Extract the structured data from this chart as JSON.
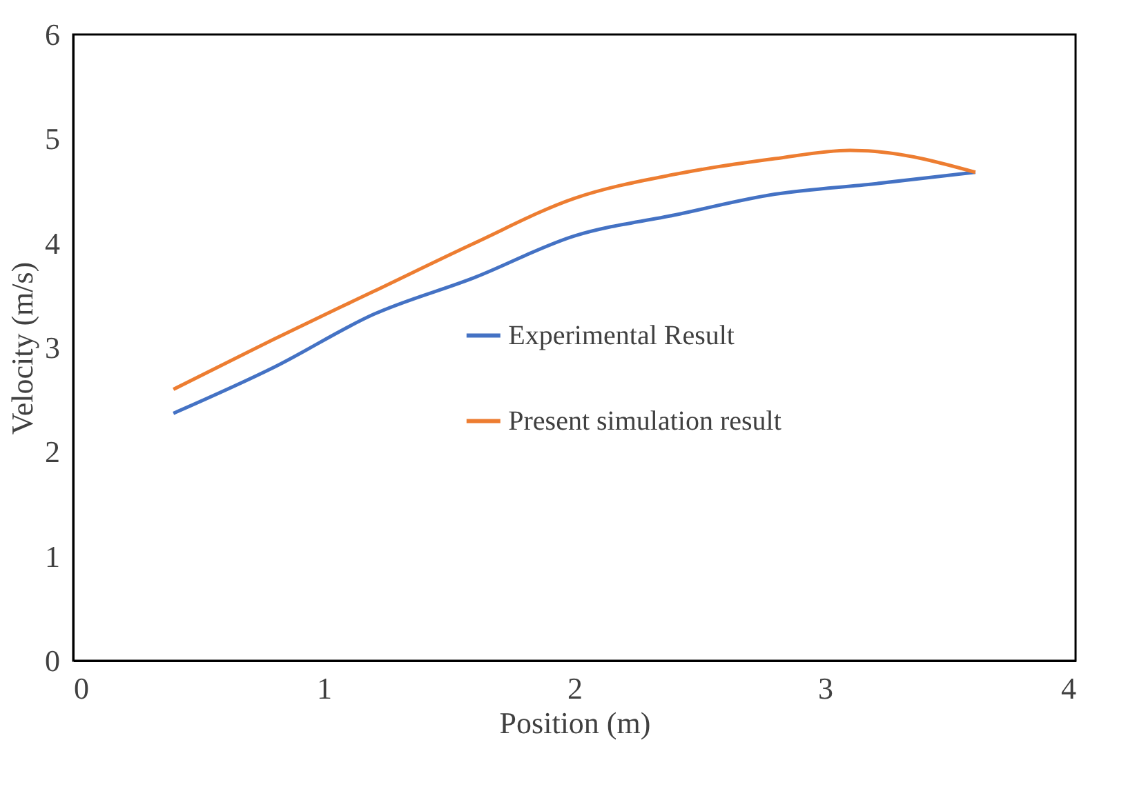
{
  "chart_data": {
    "type": "line",
    "xlabel": "Position (m)",
    "ylabel": "Velocity (m/s)",
    "xlim": [
      0,
      4
    ],
    "xticks": [
      0,
      1,
      2,
      3,
      4
    ],
    "ylim": [
      0,
      6
    ],
    "yticks": [
      0,
      1,
      2,
      3,
      4,
      5,
      6
    ],
    "grid": false,
    "legend": "right",
    "marker": "none",
    "line_style": "solid",
    "series": [
      {
        "name": "Experimental Result",
        "color": "#4472c4",
        "x": [
          0.4,
          0.8,
          1.2,
          1.6,
          2.0,
          2.4,
          2.8,
          3.2,
          3.6
        ],
        "values": [
          2.37,
          2.81,
          3.32,
          3.67,
          4.07,
          4.27,
          4.47,
          4.57,
          4.68
        ]
      },
      {
        "name": "Present simulation result",
        "color": "#ed7d31",
        "x": [
          0.4,
          0.8,
          1.2,
          1.6,
          2.0,
          2.4,
          2.8,
          3.1,
          3.2,
          3.6
        ],
        "values": [
          2.6,
          3.08,
          3.54,
          4.0,
          4.43,
          4.66,
          4.81,
          4.89,
          4.88,
          4.68
        ]
      }
    ]
  }
}
